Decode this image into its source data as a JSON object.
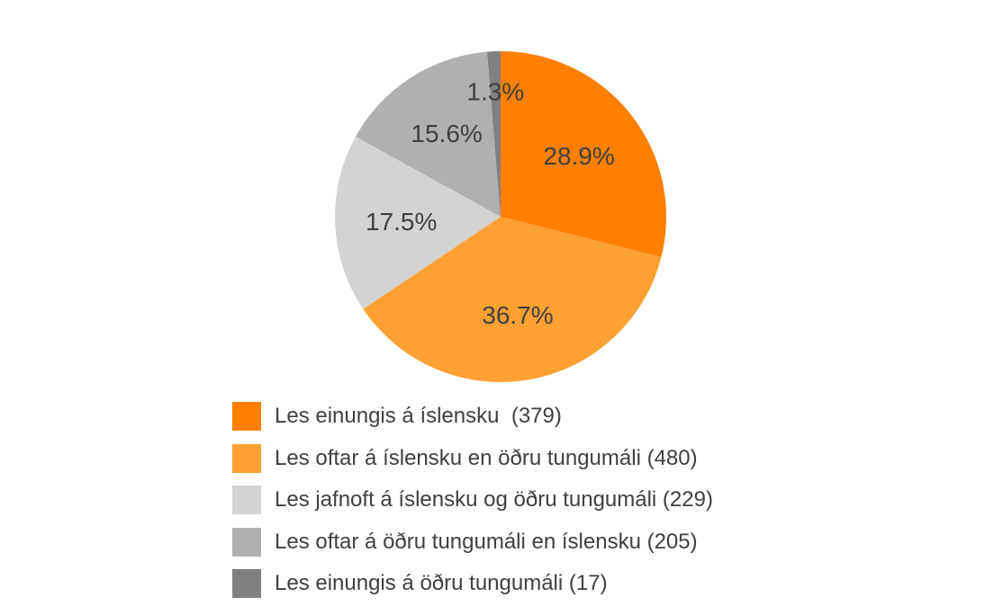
{
  "chart_data": {
    "type": "pie",
    "start_angle": "top, clockwise",
    "slices": [
      {
        "label": "Les einungis á íslensku  (379)",
        "value": 379,
        "percent_label": "28.9%",
        "color": "#FF7F00"
      },
      {
        "label": "Les oftar á íslensku en öðru tungumáli (480)",
        "value": 480,
        "percent_label": "36.7%",
        "color": "#FFA033"
      },
      {
        "label": "Les jafnoft á íslensku og öðru tungumáli (229)",
        "value": 229,
        "percent_label": "17.5%",
        "color": "#D3D3D3"
      },
      {
        "label": "Les oftar á öðru tungumáli en íslensku (205)",
        "value": 205,
        "percent_label": "15.6%",
        "color": "#B0B0B0"
      },
      {
        "label": "Les einungis á öðru tungumáli (17)",
        "value": 17,
        "percent_label": "1.3%",
        "color": "#808080"
      }
    ],
    "legend_placement": "bottom",
    "label_color": "#404040"
  }
}
